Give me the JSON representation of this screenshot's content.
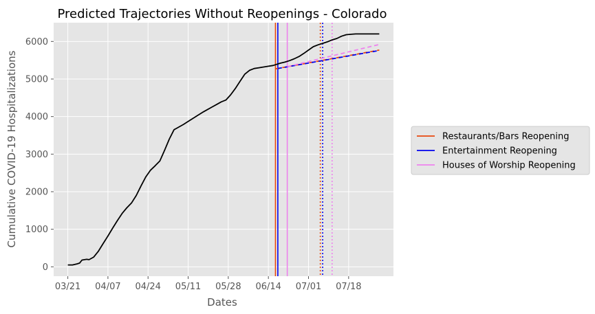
{
  "chart_data": {
    "type": "line",
    "title": "Predicted Trajectories Without Reopenings - Colorado",
    "xlabel": "Dates",
    "ylabel": "Cumulative COVID-19 Hospitalizations",
    "x_tick_labels": [
      "03/21",
      "04/07",
      "04/24",
      "05/11",
      "05/28",
      "06/14",
      "07/01",
      "07/18"
    ],
    "y_ticks": [
      0,
      1000,
      2000,
      3000,
      4000,
      5000,
      6000
    ],
    "xlim": [
      "2020-03-15",
      "2020-08-06"
    ],
    "ylim": [
      -250,
      6500
    ],
    "grid": true,
    "legend_position": "outside-right",
    "colors": {
      "background": "#e5e5e5",
      "grid": "#ffffff",
      "observed": "#000000",
      "restaurants": "#e8470c",
      "entertainment": "#0000ee",
      "worship": "#ee82ee"
    },
    "observed_series": {
      "x": [
        "2020-03-21",
        "2020-03-23",
        "2020-03-25",
        "2020-03-26",
        "2020-03-27",
        "2020-03-29",
        "2020-03-30",
        "2020-04-01",
        "2020-04-03",
        "2020-04-05",
        "2020-04-07",
        "2020-04-09",
        "2020-04-11",
        "2020-04-13",
        "2020-04-15",
        "2020-04-17",
        "2020-04-19",
        "2020-04-21",
        "2020-04-23",
        "2020-04-25",
        "2020-04-27",
        "2020-04-29",
        "2020-05-01",
        "2020-05-03",
        "2020-05-05",
        "2020-05-07",
        "2020-05-09",
        "2020-05-11",
        "2020-05-13",
        "2020-05-15",
        "2020-05-17",
        "2020-05-19",
        "2020-05-21",
        "2020-05-23",
        "2020-05-25",
        "2020-05-27",
        "2020-05-29",
        "2020-05-31",
        "2020-06-02",
        "2020-06-04",
        "2020-06-06",
        "2020-06-08",
        "2020-06-10",
        "2020-06-12",
        "2020-06-14",
        "2020-06-16",
        "2020-06-17",
        "2020-06-19",
        "2020-06-21",
        "2020-06-23",
        "2020-06-25",
        "2020-06-27",
        "2020-06-29",
        "2020-07-01",
        "2020-07-03",
        "2020-07-05",
        "2020-07-07",
        "2020-07-09",
        "2020-07-11",
        "2020-07-13",
        "2020-07-15",
        "2020-07-17",
        "2020-07-19",
        "2020-07-21",
        "2020-07-23",
        "2020-07-25",
        "2020-07-27",
        "2020-07-29",
        "2020-07-31"
      ],
      "y": [
        50,
        50,
        80,
        100,
        180,
        200,
        190,
        260,
        420,
        620,
        820,
        1030,
        1230,
        1420,
        1570,
        1700,
        1900,
        2150,
        2390,
        2570,
        2690,
        2820,
        3100,
        3400,
        3650,
        3720,
        3790,
        3870,
        3950,
        4030,
        4110,
        4180,
        4250,
        4320,
        4390,
        4440,
        4580,
        4750,
        4940,
        5130,
        5230,
        5280,
        5300,
        5320,
        5340,
        5360,
        5380,
        5420,
        5450,
        5490,
        5540,
        5600,
        5680,
        5770,
        5860,
        5910,
        5950,
        5990,
        6040,
        6080,
        6140,
        6180,
        6190,
        6200,
        6200,
        6200,
        6200,
        6200,
        6200
      ]
    },
    "series": [
      {
        "name": "Restaurants/Bars Reopening",
        "color": "#e8470c",
        "date": "2020-06-17"
      },
      {
        "name": "Entertainment Reopening",
        "color": "#0000ee",
        "date": "2020-06-18"
      },
      {
        "name": "Houses of Worship Reopening",
        "color": "#ee82ee",
        "date": "2020-06-22"
      }
    ],
    "prediction_lines": [
      {
        "color": "#e8470c",
        "dash": "dashed",
        "x": [
          "2020-06-17",
          "2020-07-31"
        ],
        "y": [
          5270,
          5770
        ]
      },
      {
        "color": "#0000ee",
        "dash": "dashed",
        "x": [
          "2020-06-18",
          "2020-07-31"
        ],
        "y": [
          5280,
          5760
        ]
      },
      {
        "color": "#ee82ee",
        "dash": "dashed",
        "x": [
          "2020-06-22",
          "2020-07-31"
        ],
        "y": [
          5330,
          5920
        ]
      }
    ],
    "prediction_markers": [
      {
        "color": "#e8470c",
        "dash": "dotted",
        "date": "2020-07-06"
      },
      {
        "color": "#0000ee",
        "dash": "dotted",
        "date": "2020-07-07"
      },
      {
        "color": "#ee82ee",
        "dash": "dotted",
        "date": "2020-07-11"
      }
    ]
  }
}
